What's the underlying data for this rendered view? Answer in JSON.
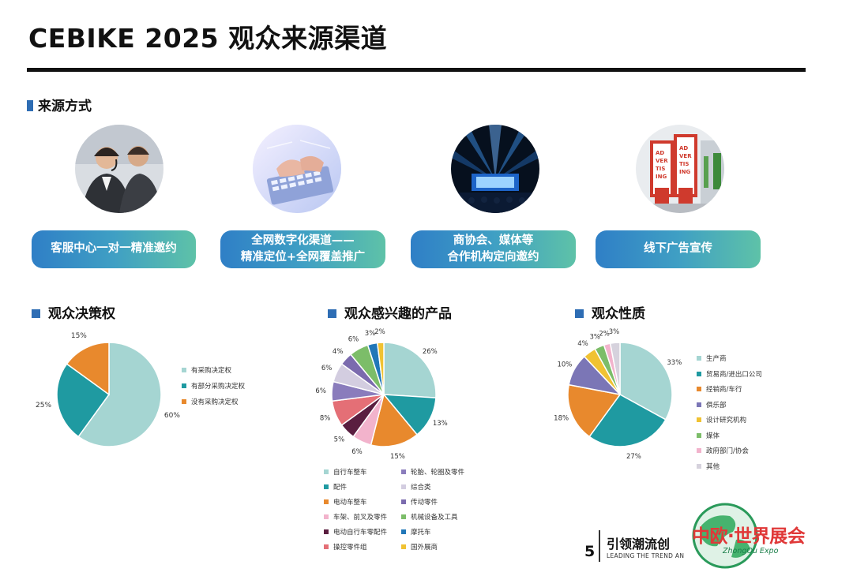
{
  "header": {
    "title": "CEBIKE 2025 观众来源渠道"
  },
  "sources": {
    "heading": "来源方式",
    "items": [
      {
        "lines": [
          "客服中心一对一精准邀约"
        ],
        "photo": "call-center-photo"
      },
      {
        "lines": [
          "全网数字化渠道——",
          "精准定位+全网覆盖推广"
        ],
        "photo": "laptop-typing-photo"
      },
      {
        "lines": [
          "商协会、媒体等",
          "合作机构定向邀约"
        ],
        "photo": "stage-event-photo"
      },
      {
        "lines": [
          "线下广告宣传"
        ],
        "photo": "advertising-billboard-photo"
      }
    ]
  },
  "chart_data": [
    {
      "type": "pie",
      "title": "观众决策权",
      "series": [
        {
          "values": [
            60,
            25,
            15
          ]
        }
      ],
      "labels": [
        "有采购决定权",
        "有部分采购决定权",
        "没有采购决定权"
      ],
      "value_labels": [
        "60%",
        "25%",
        "15%"
      ],
      "colors": [
        "#a5d5d2",
        "#1f9aa1",
        "#e8892d"
      ],
      "legend": "right"
    },
    {
      "type": "pie",
      "title": "观众感兴趣的产品",
      "series": [
        {
          "values": [
            26,
            13,
            15,
            6,
            5,
            8,
            6,
            6,
            4,
            6,
            3,
            2
          ]
        }
      ],
      "labels": [
        "自行车整车",
        "配件",
        "电动车整车",
        "车架、前叉及零件",
        "电动自行车零配件",
        "操控零件组",
        "轮胎、轮圈及零件",
        "综合类",
        "传动零件",
        "机械设备及工具",
        "摩托车",
        "国外展商"
      ],
      "value_labels": [
        "26%",
        "13%",
        "15%",
        "6%",
        "5%",
        "8%",
        "6%",
        "6%",
        "4%",
        "6%",
        "3%",
        "2%"
      ],
      "colors": [
        "#a5d5d2",
        "#1f9aa1",
        "#e8892d",
        "#f2b3cc",
        "#5a1e40",
        "#e46f76",
        "#8a7cbc",
        "#d3cde0",
        "#7b6bae",
        "#7cbd69",
        "#2177b8",
        "#f0c232"
      ],
      "legend": "bottom"
    },
    {
      "type": "pie",
      "title": "观众性质",
      "series": [
        {
          "values": [
            33,
            27,
            18,
            10,
            4,
            3,
            2,
            3
          ]
        }
      ],
      "labels": [
        "生产商",
        "贸易商/进出口公司",
        "经销商/车行",
        "俱乐部",
        "设计研究机构",
        "媒体",
        "政府部门/协会",
        "其他"
      ],
      "value_labels": [
        "33%",
        "27%",
        "18%",
        "10%",
        "4%",
        "3%",
        "2%",
        "3%"
      ],
      "colors": [
        "#a5d5d2",
        "#1f9aa1",
        "#e8892d",
        "#7b76b6",
        "#f0c232",
        "#7cbd69",
        "#f2b3cc",
        "#d6d2dd"
      ],
      "legend": "right"
    }
  ],
  "footer": {
    "page": "5",
    "slogan_cn": "引领潮流创",
    "slogan_en": "LEADING THE TREND AN",
    "logo_cn": "中欧·世界展会",
    "logo_en": "ZhongOu Expo"
  }
}
